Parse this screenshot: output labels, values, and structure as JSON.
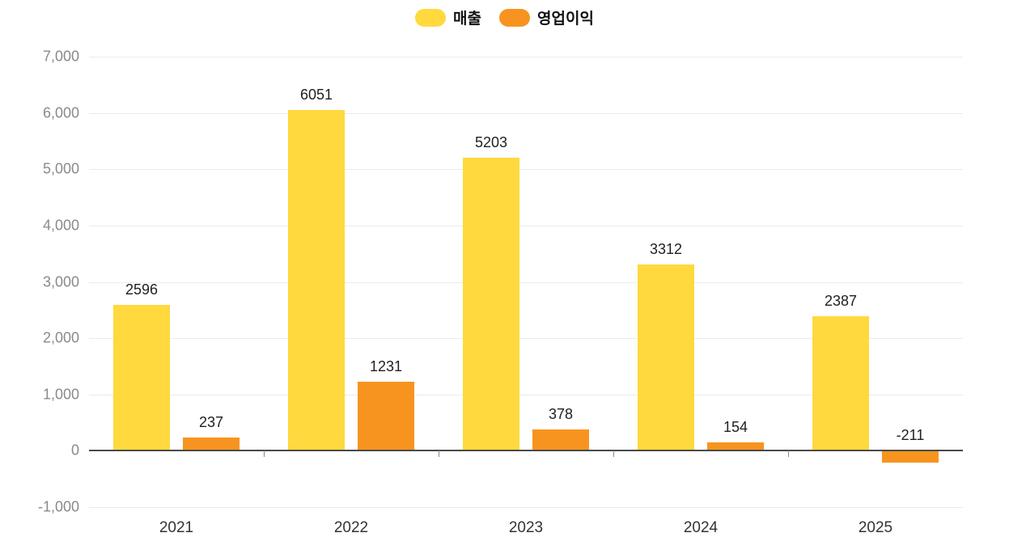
{
  "chart_data": {
    "type": "bar",
    "title": "",
    "xlabel": "",
    "ylabel": "",
    "grid": true,
    "legend_position": "top",
    "categories": [
      "2021",
      "2022",
      "2023",
      "2024",
      "2025"
    ],
    "series": [
      {
        "id": "revenue",
        "name": "매출",
        "color": "#FFD93D",
        "values": [
          2596,
          6051,
          5203,
          3312,
          2387
        ],
        "labels": [
          "2596",
          "6051",
          "5203",
          "3312",
          "2387"
        ]
      },
      {
        "id": "operating-profit",
        "name": "영업이익",
        "color": "#F7941F",
        "values": [
          237,
          1231,
          378,
          154,
          -211
        ],
        "labels": [
          "237",
          "1231",
          "378",
          "154",
          "-211"
        ]
      }
    ],
    "ylim": [
      -1000,
      7000
    ],
    "yticks": [
      {
        "value": 7000,
        "label": "7,000"
      },
      {
        "value": 6000,
        "label": "6,000"
      },
      {
        "value": 5000,
        "label": "5,000"
      },
      {
        "value": 4000,
        "label": "4,000"
      },
      {
        "value": 3000,
        "label": "3,000"
      },
      {
        "value": 2000,
        "label": "2,000"
      },
      {
        "value": 1000,
        "label": "1,000"
      },
      {
        "value": 0,
        "label": "0"
      },
      {
        "value": -1000,
        "label": "-1,000"
      }
    ]
  }
}
